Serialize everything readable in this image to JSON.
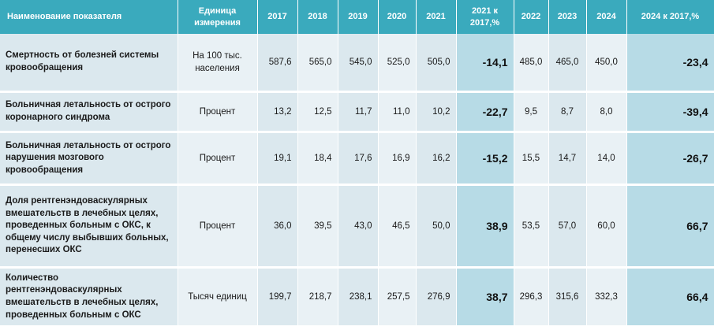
{
  "headers": {
    "name": "Наименование показателя",
    "unit": "Единица измерения",
    "y2017": "2017",
    "y2018": "2018",
    "y2019": "2019",
    "y2020": "2020",
    "y2021": "2021",
    "cmp2021": "2021 к 2017,%",
    "y2022": "2022",
    "y2023": "2023",
    "y2024": "2024",
    "cmp2024": "2024 к 2017,%"
  },
  "rows": [
    {
      "name": "Смертность от болезней системы кровообращения",
      "unit": "На 100 тыс. населения",
      "v2017": "587,6",
      "v2018": "565,0",
      "v2019": "545,0",
      "v2020": "525,0",
      "v2021": "505,0",
      "cmp2021": "-14,1",
      "v2022": "485,0",
      "v2023": "465,0",
      "v2024": "450,0",
      "cmp2024": "-23,4"
    },
    {
      "name": "Больничная летальность от острого коронарного синдрома",
      "unit": "Процент",
      "v2017": "13,2",
      "v2018": "12,5",
      "v2019": "11,7",
      "v2020": "11,0",
      "v2021": "10,2",
      "cmp2021": "-22,7",
      "v2022": "9,5",
      "v2023": "8,7",
      "v2024": "8,0",
      "cmp2024": "-39,4"
    },
    {
      "name": "Больничная летальность от острого нарушения мозгового кровообращения",
      "unit": "Процент",
      "v2017": "19,1",
      "v2018": "18,4",
      "v2019": "17,6",
      "v2020": "16,9",
      "v2021": "16,2",
      "cmp2021": "-15,2",
      "v2022": "15,5",
      "v2023": "14,7",
      "v2024": "14,0",
      "cmp2024": "-26,7"
    },
    {
      "name": "Доля рентгенэндоваскулярных вмешательств в лечебных целях, проведенных больным с ОКС, к общему числу выбывших больных, перенесших ОКС",
      "unit": "Процент",
      "v2017": "36,0",
      "v2018": "39,5",
      "v2019": "43,0",
      "v2020": "46,5",
      "v2021": "50,0",
      "cmp2021": "38,9",
      "v2022": "53,5",
      "v2023": "57,0",
      "v2024": "60,0",
      "cmp2024": "66,7"
    },
    {
      "name": "Количество рентгенэндоваскулярных вмешательств в лечебных целях, проведенных больным с ОКС",
      "unit": "Тысяч единиц",
      "v2017": "199,7",
      "v2018": "218,7",
      "v2019": "238,1",
      "v2020": "257,5",
      "v2021": "276,9",
      "cmp2021": "38,7",
      "v2022": "296,3",
      "v2023": "315,6",
      "v2024": "332,3",
      "cmp2024": "66,4"
    }
  ],
  "colors": {
    "header_bg": "#3aaabd",
    "row_bg_light": "#e9f1f5",
    "row_bg_mid": "#dbe8ee",
    "highlight_bg": "#b7dbe6"
  }
}
